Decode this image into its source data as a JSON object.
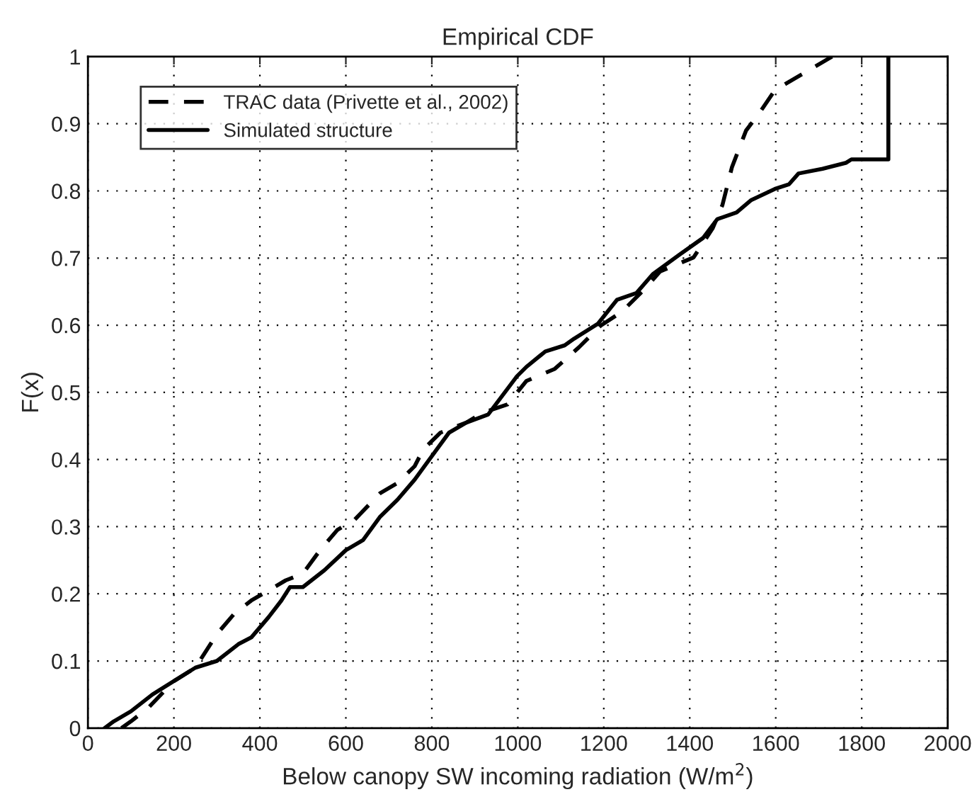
{
  "chart_data": {
    "type": "line",
    "title": "Empirical CDF",
    "xlabel": "Below canopy SW incoming radiation (W/m$^{2}$)",
    "ylabel": "F(x)",
    "xlim": [
      0,
      2000
    ],
    "xticks": [
      0,
      200,
      400,
      600,
      800,
      1000,
      1200,
      1400,
      1600,
      1800,
      2000
    ],
    "ylim": [
      0,
      1
    ],
    "yticks": [
      0,
      0.1,
      0.2,
      0.3,
      0.4,
      0.5,
      0.6,
      0.7,
      0.8,
      0.9,
      1
    ],
    "grid": true,
    "legend": "top left",
    "series": [
      {
        "name": "TRAC data (Privette et al., 2002)",
        "color": "#000000",
        "line_style": "dashed",
        "x": [
          78,
          100,
          140,
          200,
          250,
          270,
          300,
          340,
          380,
          420,
          460,
          500,
          540,
          580,
          620,
          680,
          720,
          760,
          780,
          820,
          880,
          920,
          976,
          1020,
          1086,
          1142,
          1192,
          1242,
          1292,
          1331,
          1409,
          1453,
          1476,
          1498,
          1531,
          1564,
          1598,
          1664,
          1731
        ],
        "values": [
          0,
          0.01,
          0.03,
          0.07,
          0.09,
          0.11,
          0.14,
          0.17,
          0.19,
          0.205,
          0.22,
          0.23,
          0.265,
          0.295,
          0.31,
          0.35,
          0.365,
          0.39,
          0.415,
          0.44,
          0.455,
          0.47,
          0.482,
          0.517,
          0.535,
          0.567,
          0.599,
          0.62,
          0.652,
          0.68,
          0.701,
          0.744,
          0.779,
          0.835,
          0.89,
          0.918,
          0.95,
          0.975,
          1.0
        ]
      },
      {
        "name": "Simulated structure",
        "color": "#000000",
        "line_style": "solid",
        "x": [
          39,
          60,
          100,
          150,
          200,
          250,
          300,
          350,
          380,
          420,
          450,
          470,
          500,
          550,
          600,
          640,
          680,
          720,
          760,
          800,
          840,
          880,
          931,
          998,
          1020,
          1064,
          1109,
          1131,
          1186,
          1231,
          1276,
          1314,
          1376,
          1431,
          1464,
          1509,
          1542,
          1598,
          1631,
          1653,
          1709,
          1764,
          1776,
          1862,
          1862
        ],
        "values": [
          0,
          0.01,
          0.025,
          0.05,
          0.07,
          0.09,
          0.1,
          0.125,
          0.135,
          0.165,
          0.19,
          0.21,
          0.21,
          0.235,
          0.265,
          0.28,
          0.315,
          0.34,
          0.37,
          0.405,
          0.44,
          0.455,
          0.467,
          0.524,
          0.538,
          0.561,
          0.57,
          0.58,
          0.602,
          0.638,
          0.648,
          0.676,
          0.705,
          0.73,
          0.758,
          0.768,
          0.786,
          0.803,
          0.81,
          0.826,
          0.833,
          0.842,
          0.847,
          0.847,
          1.0
        ]
      }
    ]
  }
}
